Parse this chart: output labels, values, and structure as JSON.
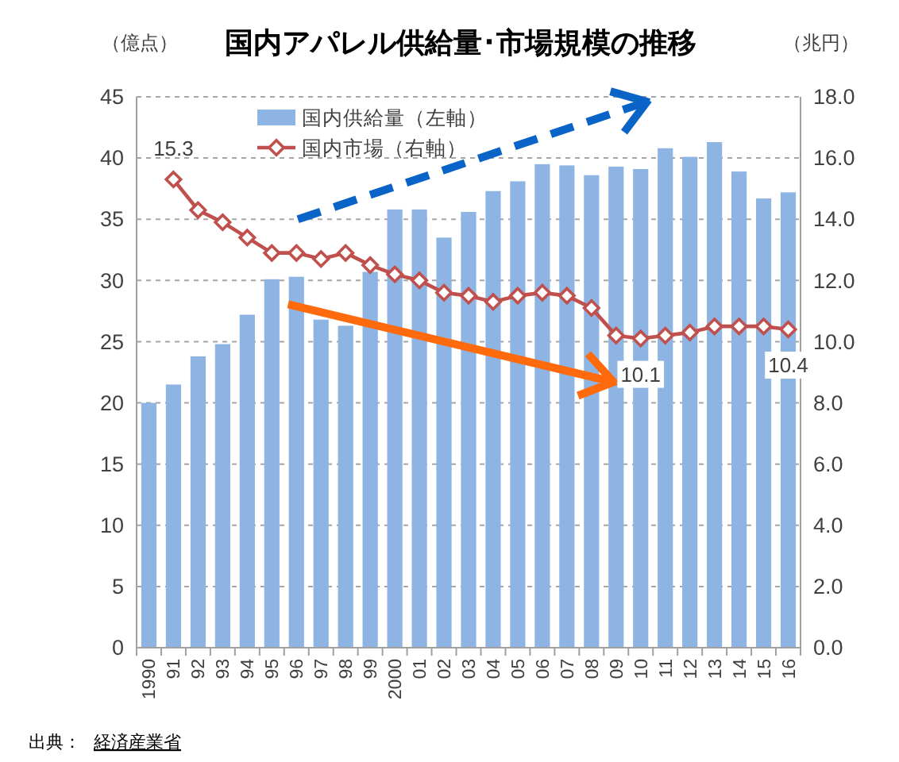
{
  "chart_data": {
    "type": "bar",
    "title": "国内アパレル供給量･市場規模の推移",
    "ylabel": "（億点）",
    "y2label": "（兆円）",
    "categories": [
      "1990",
      "91",
      "92",
      "93",
      "94",
      "95",
      "96",
      "97",
      "98",
      "99",
      "2000",
      "01",
      "02",
      "03",
      "04",
      "05",
      "06",
      "07",
      "08",
      "09",
      "10",
      "11",
      "12",
      "13",
      "14",
      "15",
      "16"
    ],
    "series": [
      {
        "name": "国内供給量（左軸）",
        "color": "#8db4e2",
        "values": [
          20.0,
          21.5,
          23.8,
          24.8,
          27.2,
          30.1,
          30.3,
          26.8,
          26.3,
          30.7,
          35.8,
          35.8,
          33.5,
          35.6,
          37.3,
          38.1,
          39.5,
          39.4,
          38.6,
          39.3,
          39.1,
          40.8,
          40.1,
          41.3,
          38.9,
          36.7,
          37.2
        ]
      },
      {
        "name": "国内市場（右軸）",
        "type": "line",
        "axis": "y2",
        "color": "#c0504d",
        "values": [
          null,
          15.3,
          14.3,
          13.9,
          13.4,
          12.9,
          12.9,
          12.7,
          12.9,
          12.5,
          12.2,
          12.0,
          11.6,
          11.5,
          11.3,
          11.5,
          11.6,
          11.5,
          11.1,
          10.2,
          10.1,
          10.2,
          10.3,
          10.5,
          10.5,
          10.5,
          10.4
        ],
        "value_labels": [
          null,
          "15.3",
          null,
          null,
          null,
          null,
          null,
          null,
          null,
          null,
          null,
          null,
          null,
          null,
          null,
          null,
          null,
          null,
          null,
          null,
          "10.1",
          null,
          null,
          null,
          null,
          null,
          "10.4"
        ]
      }
    ],
    "ylim": [
      0,
      45
    ],
    "yticks": [
      0,
      5,
      10,
      15,
      20,
      25,
      30,
      35,
      40,
      45
    ],
    "y2lim": [
      0,
      18
    ],
    "y2ticks": [
      {
        "value": 0,
        "label": "0.0"
      },
      {
        "value": 2,
        "label": "2.0"
      },
      {
        "value": 4,
        "label": "4.0"
      },
      {
        "value": 6,
        "label": "6.0"
      },
      {
        "value": 8,
        "label": "8.0"
      },
      {
        "value": 10,
        "label": "10.0"
      },
      {
        "value": 12,
        "label": "12.0"
      },
      {
        "value": 14,
        "label": "14.0"
      },
      {
        "value": 16,
        "label": "16.0"
      },
      {
        "value": 18,
        "label": "18.0"
      }
    ],
    "grid": "y",
    "legend": "top",
    "marker": "diamond",
    "line_style": "solid",
    "annotations": [
      "出典：",
      "経済産業省"
    ]
  }
}
